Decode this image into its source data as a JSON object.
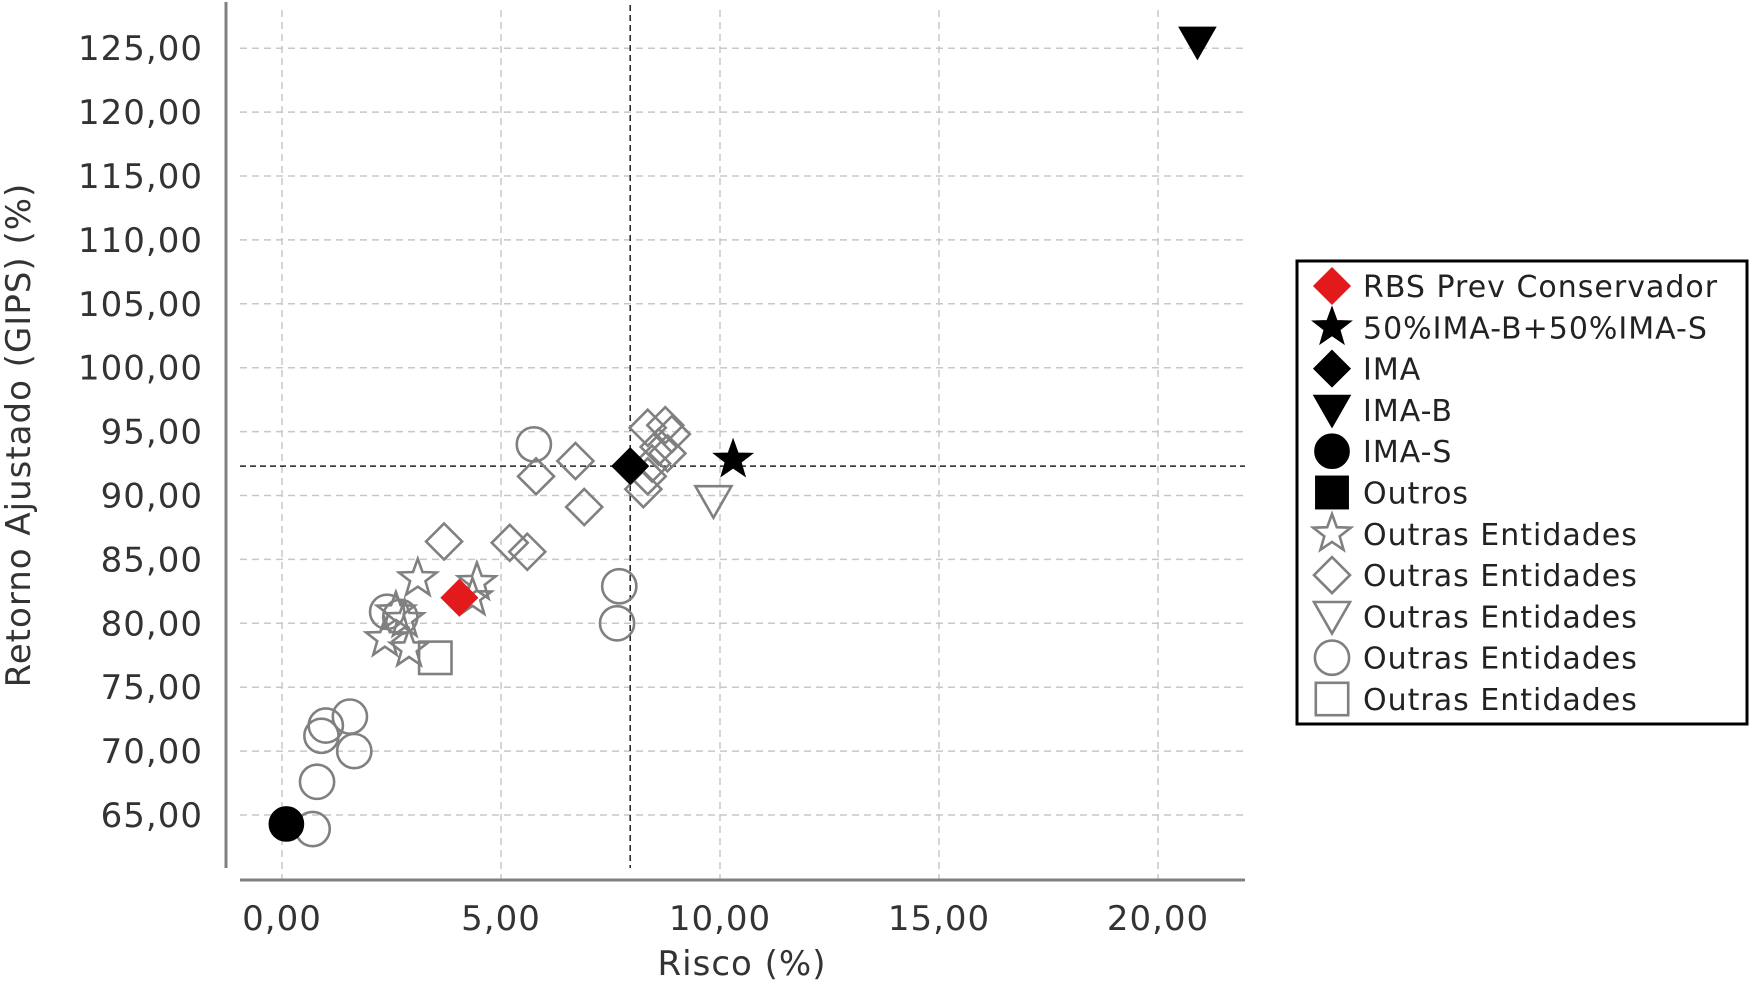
{
  "chart_data": {
    "type": "scatter",
    "xlabel": "Risco (%)",
    "ylabel": "Retorno Ajustado (GIPS) (%)",
    "xlim": [
      -1.2,
      22
    ],
    "ylim": [
      59,
      129
    ],
    "xticks": [
      0,
      5,
      10,
      15,
      20
    ],
    "xtick_labels": [
      "0,00",
      "5,00",
      "10,00",
      "15,00",
      "20,00"
    ],
    "yticks": [
      65,
      70,
      75,
      80,
      85,
      90,
      95,
      100,
      105,
      110,
      115,
      120,
      125
    ],
    "ytick_labels": [
      "65,00",
      "70,00",
      "75,00",
      "80,00",
      "85,00",
      "90,00",
      "95,00",
      "100,00",
      "105,00",
      "110,00",
      "115,00",
      "120,00",
      "125,00"
    ],
    "grid": true,
    "reference_lines": {
      "x": 7.95,
      "y": 92.3
    },
    "legend_position": "right",
    "colors": {
      "highlight": "#e31a1c",
      "benchmark": "#000000",
      "peer": "#808080"
    },
    "series": [
      {
        "name": "RBS Prev Conservador",
        "marker": "diamond",
        "filled": true,
        "color": "#e31a1c",
        "points": [
          {
            "x": 4.05,
            "y": 82.0
          }
        ]
      },
      {
        "name": "50%IMA-B+50%IMA-S",
        "marker": "star",
        "filled": true,
        "color": "#000000",
        "points": [
          {
            "x": 10.3,
            "y": 92.8
          }
        ]
      },
      {
        "name": "IMA",
        "marker": "diamond",
        "filled": true,
        "color": "#000000",
        "points": [
          {
            "x": 7.95,
            "y": 92.3
          }
        ]
      },
      {
        "name": "IMA-B",
        "marker": "triangle-down",
        "filled": true,
        "color": "#000000",
        "points": [
          {
            "x": 20.9,
            "y": 125.5
          }
        ]
      },
      {
        "name": "IMA-S",
        "marker": "circle",
        "filled": true,
        "color": "#000000",
        "points": [
          {
            "x": 0.1,
            "y": 64.3
          }
        ]
      },
      {
        "name": "Outros",
        "marker": "square",
        "filled": true,
        "color": "#000000",
        "points": []
      },
      {
        "name": "Outras Entidades",
        "marker": "star",
        "filled": false,
        "color": "#808080",
        "points": [
          {
            "x": 3.1,
            "y": 83.5
          },
          {
            "x": 4.45,
            "y": 83.2
          },
          {
            "x": 4.35,
            "y": 82.0
          },
          {
            "x": 2.35,
            "y": 78.8
          },
          {
            "x": 2.8,
            "y": 80.3
          },
          {
            "x": 2.6,
            "y": 80.9
          },
          {
            "x": 2.9,
            "y": 78.0
          }
        ]
      },
      {
        "name": "Outras Entidades",
        "marker": "diamond",
        "filled": false,
        "color": "#808080",
        "points": [
          {
            "x": 3.7,
            "y": 86.4
          },
          {
            "x": 5.2,
            "y": 86.3
          },
          {
            "x": 5.6,
            "y": 85.6
          },
          {
            "x": 5.8,
            "y": 91.5
          },
          {
            "x": 6.7,
            "y": 92.7
          },
          {
            "x": 6.9,
            "y": 89.1
          },
          {
            "x": 8.35,
            "y": 95.3
          },
          {
            "x": 8.75,
            "y": 95.5
          },
          {
            "x": 8.9,
            "y": 94.8
          },
          {
            "x": 8.6,
            "y": 93.8
          },
          {
            "x": 8.8,
            "y": 93.3
          },
          {
            "x": 8.45,
            "y": 92.5
          },
          {
            "x": 8.35,
            "y": 91.5
          },
          {
            "x": 8.25,
            "y": 90.5
          }
        ]
      },
      {
        "name": "Outras Entidades",
        "marker": "triangle-down",
        "filled": false,
        "color": "#808080",
        "points": [
          {
            "x": 9.85,
            "y": 89.6
          }
        ]
      },
      {
        "name": "Outras Entidades",
        "marker": "circle",
        "filled": false,
        "color": "#808080",
        "points": [
          {
            "x": 5.75,
            "y": 94.0
          },
          {
            "x": 7.7,
            "y": 82.9
          },
          {
            "x": 7.65,
            "y": 80.0
          },
          {
            "x": 2.4,
            "y": 80.9
          },
          {
            "x": 2.7,
            "y": 80.5
          },
          {
            "x": 1.55,
            "y": 72.7
          },
          {
            "x": 1.0,
            "y": 72.0
          },
          {
            "x": 0.9,
            "y": 71.2
          },
          {
            "x": 1.65,
            "y": 70.0
          },
          {
            "x": 0.8,
            "y": 67.6
          },
          {
            "x": 0.7,
            "y": 63.9
          }
        ]
      },
      {
        "name": "Outras Entidades",
        "marker": "square",
        "filled": false,
        "color": "#808080",
        "points": [
          {
            "x": 3.5,
            "y": 77.3
          }
        ]
      }
    ]
  }
}
